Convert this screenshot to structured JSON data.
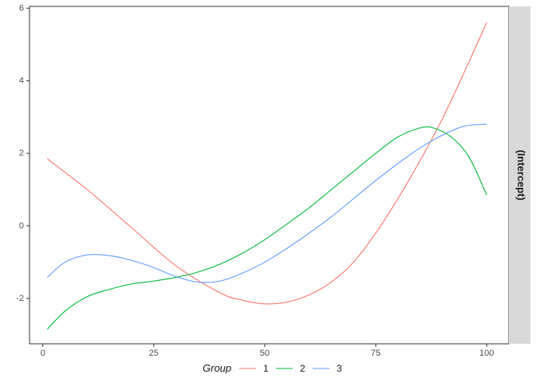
{
  "chart_data": {
    "type": "line",
    "strip_label": "(Intercept)",
    "legend": {
      "title": "Group",
      "position": "bottom"
    },
    "grid": false,
    "xlim": [
      -3,
      105
    ],
    "ylim": [
      -3.25,
      6.05
    ],
    "x_ticks": [
      0,
      25,
      50,
      75,
      100
    ],
    "y_ticks": [
      -2,
      0,
      2,
      4,
      6
    ],
    "series": [
      {
        "name": "1",
        "color": "#F8766D",
        "points": [
          [
            1,
            1.85
          ],
          [
            10,
            1.0
          ],
          [
            20,
            -0.05
          ],
          [
            30,
            -1.1
          ],
          [
            40,
            -1.85
          ],
          [
            45,
            -2.05
          ],
          [
            50,
            -2.15
          ],
          [
            55,
            -2.1
          ],
          [
            60,
            -1.9
          ],
          [
            65,
            -1.55
          ],
          [
            70,
            -1.0
          ],
          [
            75,
            -0.2
          ],
          [
            80,
            0.75
          ],
          [
            85,
            1.8
          ],
          [
            90,
            2.95
          ],
          [
            95,
            4.25
          ],
          [
            100,
            5.6
          ]
        ]
      },
      {
        "name": "2",
        "color": "#00BA38",
        "points": [
          [
            1,
            -2.85
          ],
          [
            5,
            -2.35
          ],
          [
            10,
            -1.95
          ],
          [
            15,
            -1.75
          ],
          [
            20,
            -1.6
          ],
          [
            25,
            -1.52
          ],
          [
            30,
            -1.42
          ],
          [
            35,
            -1.27
          ],
          [
            40,
            -1.05
          ],
          [
            45,
            -0.75
          ],
          [
            50,
            -0.38
          ],
          [
            55,
            0.05
          ],
          [
            60,
            0.5
          ],
          [
            65,
            1.0
          ],
          [
            70,
            1.5
          ],
          [
            75,
            2.0
          ],
          [
            80,
            2.45
          ],
          [
            85,
            2.7
          ],
          [
            88,
            2.7
          ],
          [
            92,
            2.45
          ],
          [
            96,
            1.9
          ],
          [
            100,
            0.85
          ]
        ]
      },
      {
        "name": "3",
        "color": "#619CFF",
        "points": [
          [
            1,
            -1.42
          ],
          [
            5,
            -1.0
          ],
          [
            10,
            -0.8
          ],
          [
            15,
            -0.82
          ],
          [
            20,
            -0.95
          ],
          [
            25,
            -1.15
          ],
          [
            30,
            -1.4
          ],
          [
            35,
            -1.55
          ],
          [
            40,
            -1.52
          ],
          [
            45,
            -1.3
          ],
          [
            50,
            -1.0
          ],
          [
            55,
            -0.62
          ],
          [
            60,
            -0.2
          ],
          [
            65,
            0.25
          ],
          [
            70,
            0.75
          ],
          [
            75,
            1.25
          ],
          [
            80,
            1.72
          ],
          [
            85,
            2.15
          ],
          [
            90,
            2.5
          ],
          [
            95,
            2.75
          ],
          [
            100,
            2.8
          ]
        ]
      }
    ]
  }
}
